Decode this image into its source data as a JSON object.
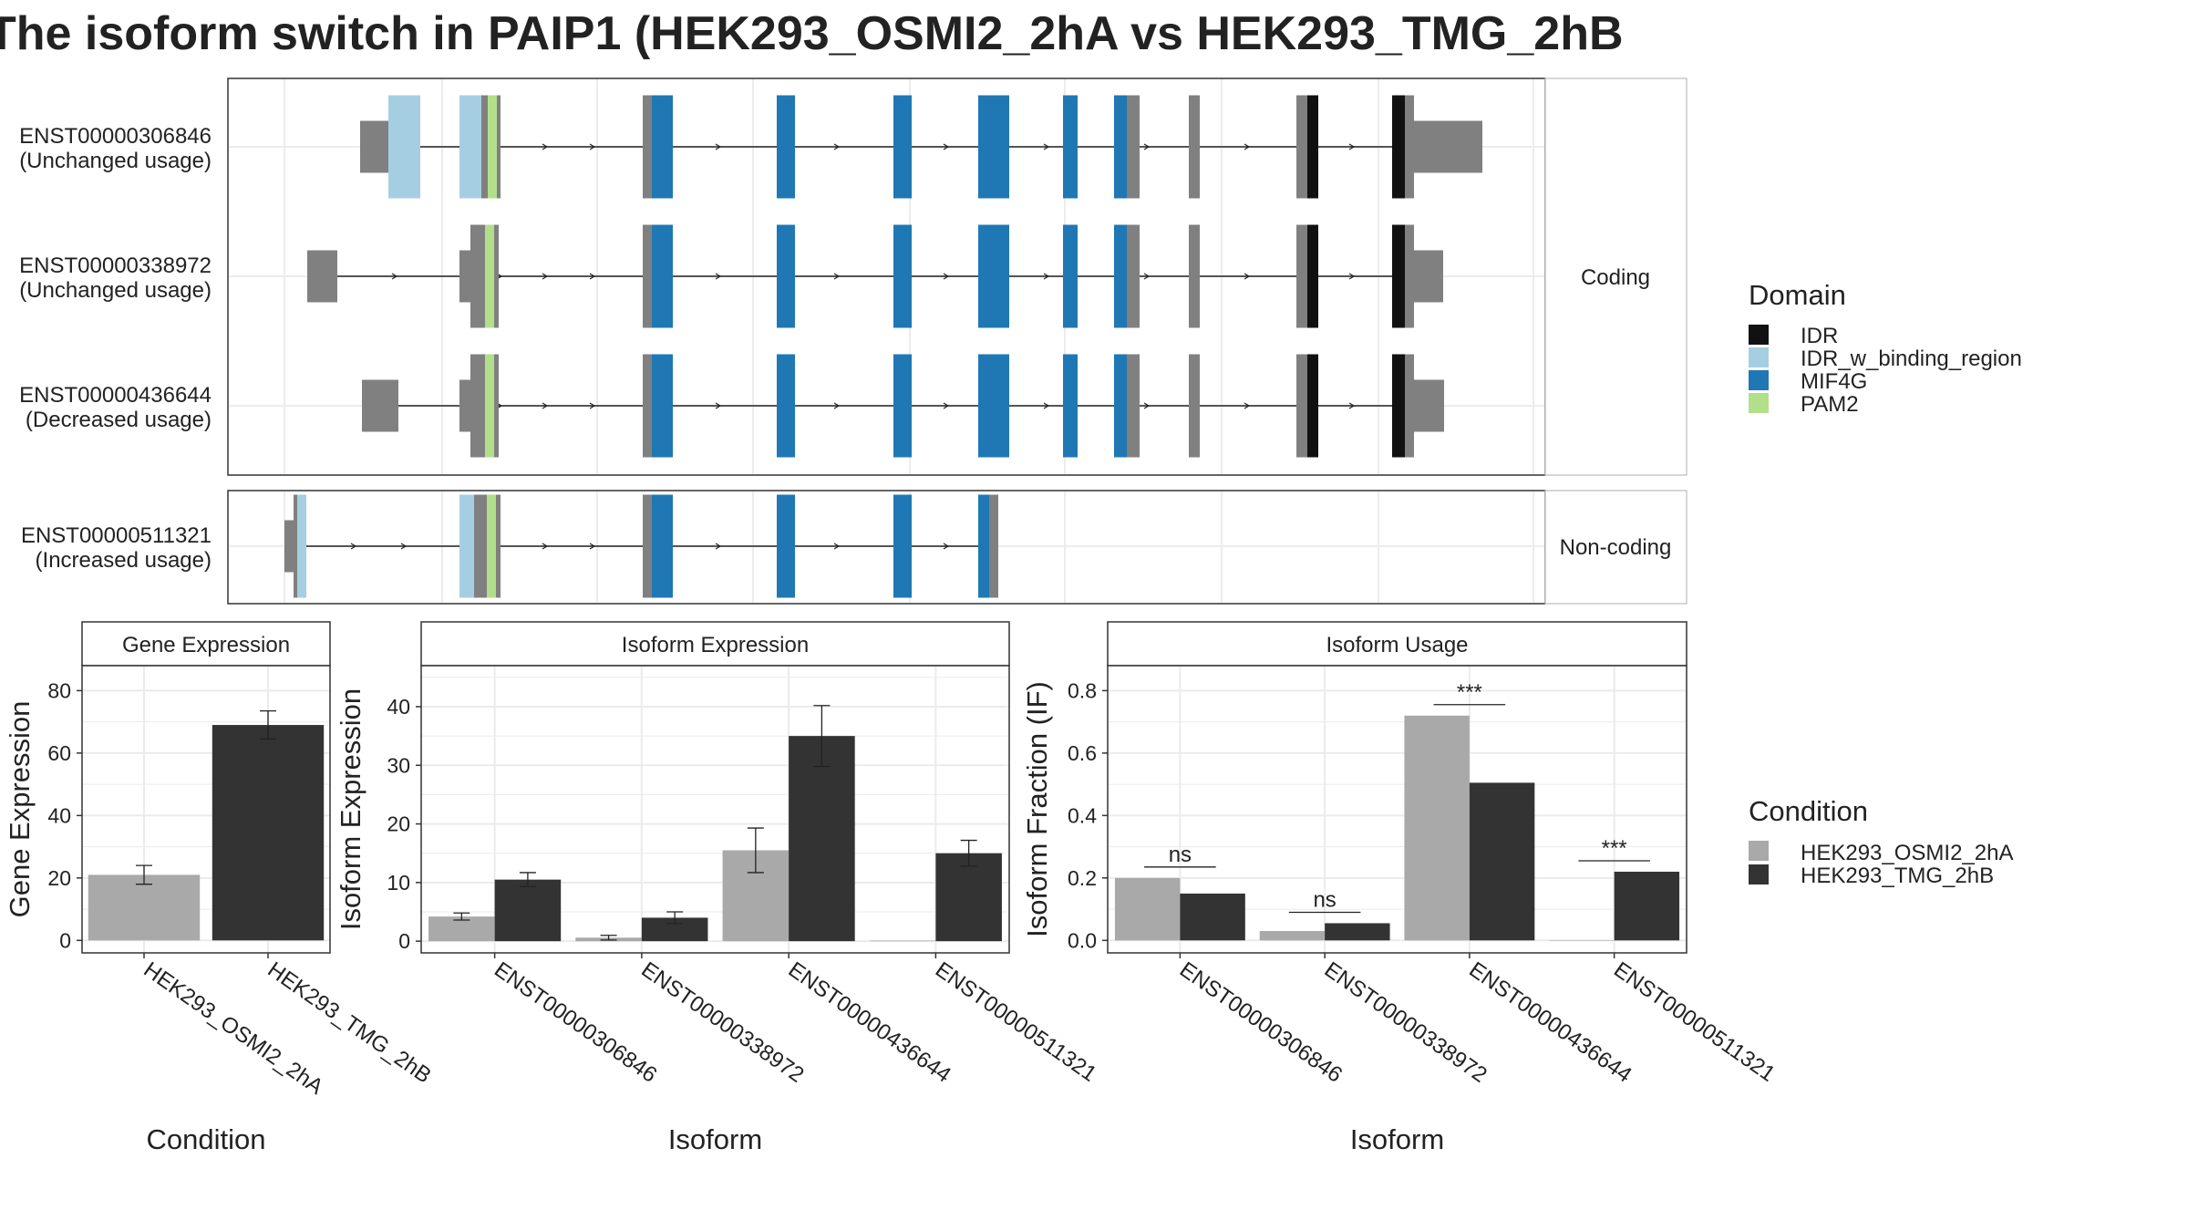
{
  "title": "The isoform switch in PAIP1 (HEK293_OSMI2_2hA vs HEK293_TMG_2hB",
  "colors": {
    "IDR": "#111111",
    "IDR_w_binding_region": "#a6cee3",
    "MIF4G": "#1f78b4",
    "PAM2": "#b2df8a",
    "untranslated": "#808080",
    "cond_a": "#a9a9a9",
    "cond_b": "#333333"
  },
  "transcript_panel": {
    "facets": [
      "Coding",
      "Non-coding"
    ],
    "transcripts": [
      {
        "id": "ENST00000306846",
        "usage": "(Unchanged usage)",
        "facet": "Coding"
      },
      {
        "id": "ENST00000338972",
        "usage": "(Unchanged usage)",
        "facet": "Coding"
      },
      {
        "id": "ENST00000436644",
        "usage": "(Decreased usage)",
        "facet": "Coding"
      },
      {
        "id": "ENST00000511321",
        "usage": "(Increased usage)",
        "facet": "Non-coding"
      }
    ]
  },
  "domain_legend": {
    "title": "Domain",
    "items": [
      {
        "label": "IDR",
        "color_key": "IDR"
      },
      {
        "label": "IDR_w_binding_region",
        "color_key": "IDR_w_binding_region"
      },
      {
        "label": "MIF4G",
        "color_key": "MIF4G"
      },
      {
        "label": "PAM2",
        "color_key": "PAM2"
      }
    ]
  },
  "condition_legend": {
    "title": "Condition",
    "items": [
      {
        "label": "HEK293_OSMI2_2hA",
        "color_key": "cond_a"
      },
      {
        "label": "HEK293_TMG_2hB",
        "color_key": "cond_b"
      }
    ]
  },
  "chart_data": [
    {
      "type": "bar",
      "title": "Gene Expression",
      "xlabel": "Condition",
      "ylabel": "Gene Expression",
      "categories": [
        "HEK293_OSMI2_2hA",
        "HEK293_TMG_2hB"
      ],
      "values": [
        21,
        69
      ],
      "errors": [
        3,
        4.5
      ],
      "yticks": [
        0,
        20,
        40,
        60,
        80
      ],
      "ylim": [
        -4,
        88
      ]
    },
    {
      "type": "bar",
      "title": "Isoform Expression",
      "xlabel": "Isoform",
      "ylabel": "Isoform Expression",
      "categories": [
        "ENST00000306846",
        "ENST00000338972",
        "ENST00000436644",
        "ENST00000511321"
      ],
      "series": [
        {
          "name": "HEK293_OSMI2_2hA",
          "values": [
            4.2,
            0.6,
            15.5,
            0.1
          ],
          "errors": [
            0.6,
            0.4,
            3.8,
            0
          ]
        },
        {
          "name": "HEK293_TMG_2hB",
          "values": [
            10.5,
            4.0,
            35.0,
            15.0
          ],
          "errors": [
            1.2,
            1.0,
            5.2,
            2.2
          ]
        }
      ],
      "yticks": [
        0,
        10,
        20,
        30,
        40
      ],
      "ylim": [
        -2,
        47
      ]
    },
    {
      "type": "bar",
      "title": "Isoform Usage",
      "xlabel": "Isoform",
      "ylabel": "Isoform Fraction (IF)",
      "categories": [
        "ENST00000306846",
        "ENST00000338972",
        "ENST00000436644",
        "ENST00000511321"
      ],
      "series": [
        {
          "name": "HEK293_OSMI2_2hA",
          "values": [
            0.2,
            0.03,
            0.72,
            0.0
          ]
        },
        {
          "name": "HEK293_TMG_2hB",
          "values": [
            0.15,
            0.055,
            0.505,
            0.22
          ]
        }
      ],
      "significance": [
        "ns",
        "ns",
        "***",
        "***"
      ],
      "yticks": [
        0.0,
        0.2,
        0.4,
        0.6,
        0.8
      ],
      "ytick_labels": [
        "0.0",
        "0.2",
        "0.4",
        "0.6",
        "0.8"
      ],
      "ylim": [
        -0.04,
        0.88
      ]
    }
  ]
}
